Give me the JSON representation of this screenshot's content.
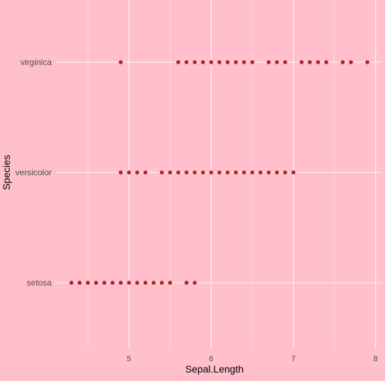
{
  "chart_data": {
    "type": "scatter",
    "title": "",
    "xlabel": "Sepal.Length",
    "ylabel": "Species",
    "xlim": [
      4.12,
      8.08
    ],
    "x_ticks": [
      5,
      6,
      7,
      8
    ],
    "x_tick_labels": [
      "5",
      "6",
      "7",
      "8"
    ],
    "categories": [
      "setosa",
      "versicolor",
      "virginica"
    ],
    "grid": true,
    "legend": "none",
    "series": [
      {
        "category": "setosa",
        "values": [
          4.3,
          4.4,
          4.5,
          4.6,
          4.7,
          4.8,
          4.9,
          5.0,
          5.1,
          5.2,
          5.3,
          5.4,
          5.5,
          5.7,
          5.8
        ]
      },
      {
        "category": "versicolor",
        "values": [
          4.9,
          5.0,
          5.1,
          5.2,
          5.4,
          5.5,
          5.6,
          5.7,
          5.8,
          5.9,
          6.0,
          6.1,
          6.2,
          6.3,
          6.4,
          6.5,
          6.6,
          6.7,
          6.8,
          6.9,
          7.0
        ]
      },
      {
        "category": "virginica",
        "values": [
          4.9,
          5.6,
          5.7,
          5.8,
          5.9,
          6.0,
          6.1,
          6.2,
          6.3,
          6.4,
          6.5,
          6.7,
          6.8,
          6.9,
          7.1,
          7.2,
          7.3,
          7.4,
          7.6,
          7.7,
          7.9
        ]
      }
    ],
    "colors": {
      "background": "#FFC0CB",
      "grid": "#FFFFFF",
      "point": "#B22222",
      "text": "#4D4D4D",
      "title_text": "#000000"
    }
  }
}
